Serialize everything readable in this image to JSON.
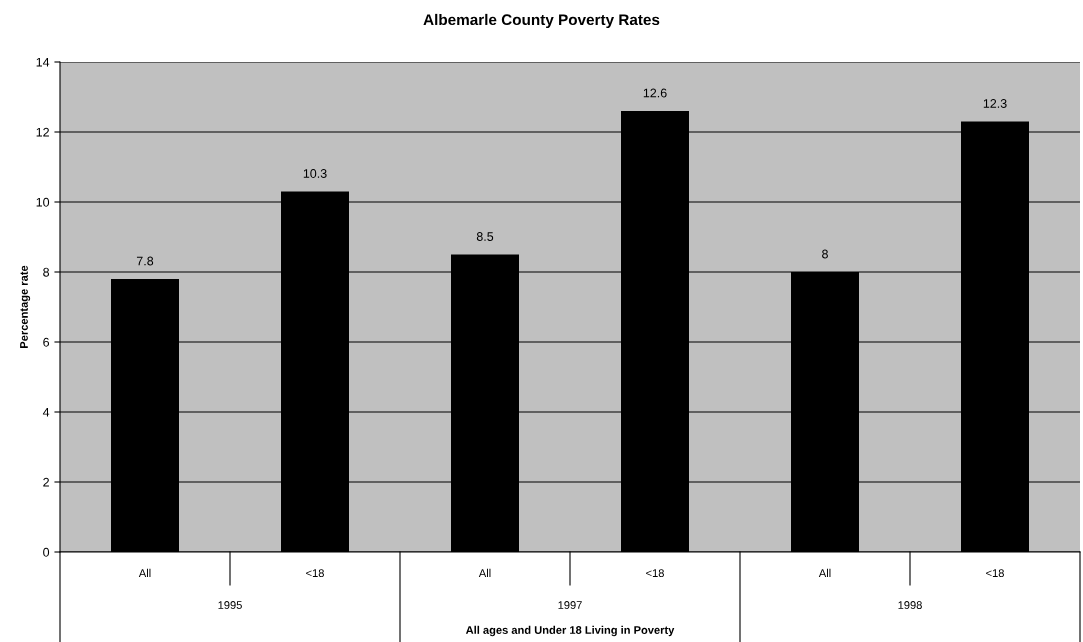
{
  "chart_data": {
    "type": "bar",
    "title": "Albemarle County Poverty Rates",
    "xlabel": "All ages and Under 18 Living in Poverty",
    "ylabel": "Percentage rate",
    "categories": [
      "All",
      "<18",
      "All",
      "<18",
      "All",
      "<18"
    ],
    "values": [
      7.8,
      10.3,
      8.5,
      12.6,
      8,
      12.3
    ],
    "color": "#000000",
    "annotations": [
      "1995",
      "1997",
      "1998"
    ],
    "ylim": [
      0,
      14
    ],
    "yticks": [
      0,
      2,
      4,
      6,
      8,
      10,
      12,
      14
    ],
    "grid": "y",
    "data_labels": true
  }
}
